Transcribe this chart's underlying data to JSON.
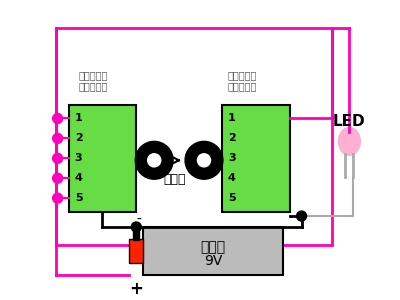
{
  "background_color": "#ffffff",
  "magenta": "#FF00BB",
  "green_module": "#66DD44",
  "black": "#000000",
  "gray": "#AAAAAA",
  "pink_led": "#FFB0D0",
  "battery_gray": "#BBBBBB",
  "battery_red": "#FF2200",
  "dark_gray": "#555555",
  "tx_label1": "超音波送信",
  "tx_label2": "モジュール",
  "rx_label1": "超音波受信",
  "rx_label2": "モジュール",
  "ultrasound_label": "超音波",
  "battery_line1": "乾電池",
  "battery_line2": "9V",
  "led_label": "LED",
  "plus_label": "+",
  "minus_label": "-",
  "pin_numbers": [
    "1",
    "2",
    "3",
    "4",
    "5"
  ]
}
